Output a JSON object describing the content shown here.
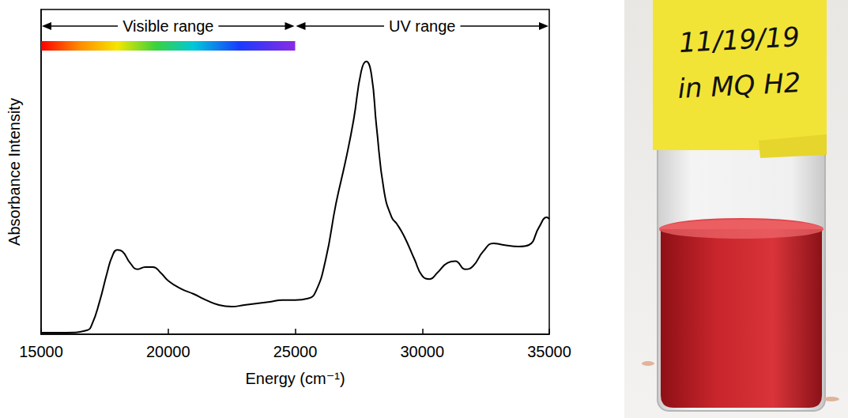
{
  "chart_data": {
    "type": "line",
    "x_label": "Energy (cm⁻¹)",
    "y_label": "Absorbance Intensity",
    "x": [
      15000,
      16000,
      16800,
      17000,
      17300,
      17600,
      17800,
      18000,
      18200,
      18500,
      18800,
      19100,
      19400,
      19700,
      20000,
      20500,
      21000,
      21500,
      22000,
      22500,
      23000,
      23500,
      24000,
      24500,
      25000,
      25500,
      25800,
      26200,
      26600,
      27000,
      27300,
      27600,
      27800,
      28000,
      28200,
      28500,
      28800,
      29000,
      29300,
      29700,
      30000,
      30300,
      30600,
      31000,
      31300,
      31700,
      32000,
      32400,
      32800,
      33200,
      33800,
      34200,
      34600,
      34900,
      35000
    ],
    "values": [
      0.005,
      0.005,
      0.012,
      0.03,
      0.1,
      0.19,
      0.24,
      0.26,
      0.255,
      0.22,
      0.2,
      0.207,
      0.207,
      0.19,
      0.165,
      0.14,
      0.124,
      0.105,
      0.09,
      0.085,
      0.09,
      0.095,
      0.1,
      0.105,
      0.105,
      0.11,
      0.13,
      0.23,
      0.4,
      0.54,
      0.66,
      0.81,
      0.84,
      0.8,
      0.64,
      0.44,
      0.36,
      0.34,
      0.3,
      0.23,
      0.18,
      0.17,
      0.19,
      0.22,
      0.225,
      0.2,
      0.21,
      0.255,
      0.28,
      0.275,
      0.27,
      0.275,
      0.33,
      0.36,
      0.355
    ],
    "color": "#000000",
    "line_style": "solid",
    "marker": "none",
    "xlim": [
      15000,
      35000
    ],
    "xticks": [
      15000,
      20000,
      25000,
      30000,
      35000
    ],
    "ylim": [
      0,
      1
    ],
    "yticks": [],
    "grid": false,
    "tick_labels": "x",
    "annotations": [
      {
        "text": "Visible range",
        "x": [
          15000,
          25000
        ]
      },
      {
        "text": "UV range",
        "x": [
          25000,
          35000
        ]
      }
    ]
  },
  "photo": {
    "label_lines": [
      "11/19/19",
      "in MQ H2"
    ]
  }
}
